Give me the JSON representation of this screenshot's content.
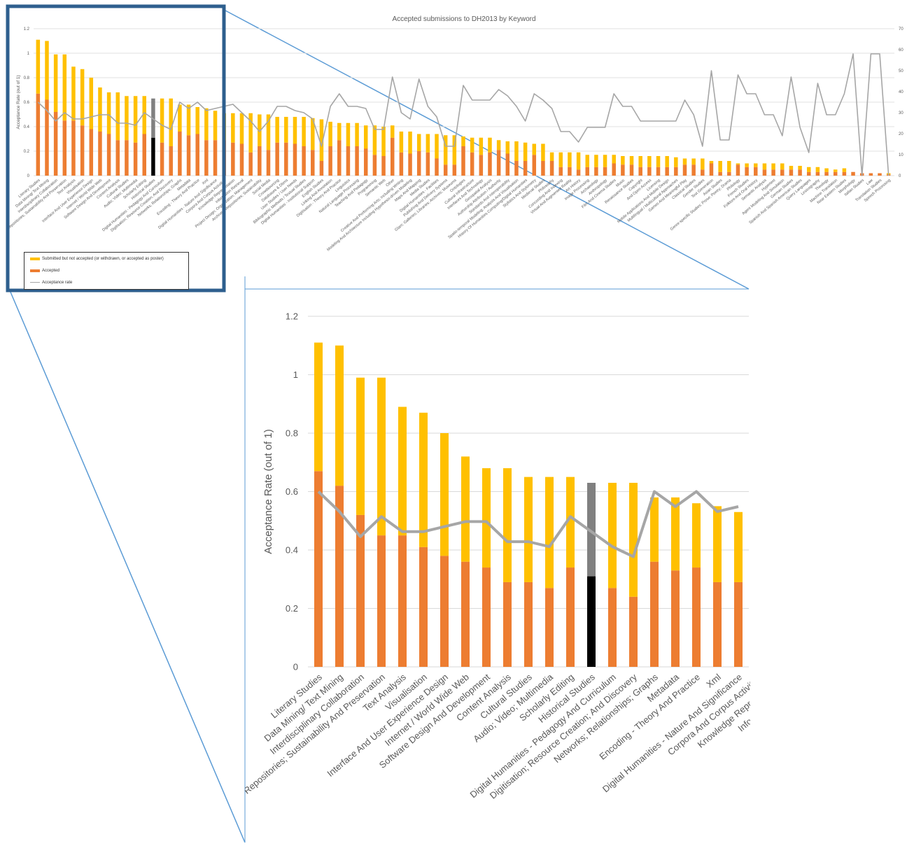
{
  "chart_data": {
    "type": "bar",
    "title": "Accepted submissions to DH2013 by Keyword",
    "ylabel": "Acceptance Rate (out of 1)",
    "ylim": [
      0,
      1.2
    ],
    "y_ticks": [
      "0",
      "0.2",
      "0.4",
      "0.6",
      "0.8",
      "1",
      "1.2"
    ],
    "y2lim": [
      0,
      70
    ],
    "y2_ticks": [
      "0",
      "10",
      "20",
      "30",
      "40",
      "50",
      "60",
      "70"
    ],
    "legend": {
      "placement": "bottom-left",
      "items": [
        {
          "label": "Submitted but not accepted (or withdrawn, or accepted as poster)",
          "color": "#FFC000"
        },
        {
          "label": "Accepted",
          "color": "#ED7D31"
        },
        {
          "label": "Acceptance rate",
          "color": "#A6A6A6"
        }
      ]
    },
    "colors": {
      "submitted": "#FFC000",
      "accepted": "#ED7D31",
      "line": "#A6A6A6",
      "highlight_submitted": "#808080",
      "highlight_accepted": "#000000",
      "callout": "#2E5F8E",
      "zoom_lines": "#5B9BD5"
    },
    "highlight_category": "Historical Studies",
    "categories": [
      "Literary Studies",
      "Data Mining/ Text Mining",
      "Interdisciplinary Collaboration",
      "Repositories; Sustainability And Preservation",
      "Text Analysis",
      "Visualisation",
      "Interface And User Experience Design",
      "Internet / World Wide Web",
      "Software Design And Development",
      "Content Analysis",
      "Cultural Studies",
      "Audio; Video; Multimedia",
      "Scholarly Editing",
      "Historical Studies",
      "Digital Humanities - Pedagogy And Curriculum",
      "Digitisation; Resource Creation; And Discovery",
      "Networks; Relationships; Graphs",
      "Metadata",
      "Encoding - Theory And Practice",
      "Xml",
      "Digital Humanities - Nature And Significance",
      "Corpora And Corpus Activities",
      "Knowledge Representation",
      "Information Retrieval",
      "Project Design; Organization; Management",
      "Archives; Repositories; Sustainability",
      "Social Media",
      "Crowdsourcing",
      "Databases & Dbms",
      "User Studies / User Needs",
      "Bibliographic Methods / Textual Studies",
      "Digital Humanities - Institutional Support",
      "English Studies",
      "Linking And Annotation",
      "Digitisation - Theory And Practice",
      "Linguistics",
      "Natural Language Processing",
      "Teaching And Pedagogy",
      "Programming",
      "Semantic Web",
      "Other",
      "Creative And Performing Arts; Including Writing",
      "Modeling And Architecture Including Hypothesis-driven Modeling",
      "Maps And Mapping",
      "Media Studies",
      "Digital Humanities - Facilities",
      "Publishing And Delivery Systems",
      "Glam: Galleries; Libraries; Archives; Museums",
      "Ontologies",
      "Cultural Infrastructure",
      "Interfaces And Technology",
      "Geospatial Analysis",
      "Authorship Attribution / Authority",
      "Standards And Interoperability",
      "Spatio-temporal Modeling; Analysis And Visualisation",
      "History Of Humanities Computing/Digital Humanities",
      "Stylistics And Stylometry",
      "Medieval Studies",
      "Philosophy",
      "Concording And Indexing",
      "Virtual And Augmented Reality",
      "Art History",
      "Image Processing",
      "Archaeology",
      "Anthropology",
      "Film And Cinema Studies",
      "Music",
      "Renaissance Studies",
      "Copyright",
      "And Open Access",
      "Licensing",
      "Mobile Applications And Mobile Design",
      "Multilingual / Multicultural Approaches",
      "Games And Meaningful Play",
      "Classical Studies",
      "Gender Studies",
      "Text Generation",
      "Asian Studies",
      "Genre-specific Studies: Prose; Poetry; Drama",
      "Philology",
      "French Studies",
      "Folklore And Oral History",
      "Semantic Analysis",
      "Hypertext",
      "Agent Modeling And Simulation",
      "German Studies",
      "Spanish And Spanish American Studies",
      "Query Languages",
      "Lexicography",
      "Theology",
      "Machine Translation",
      "Near Eastern Studies",
      "Morphology",
      "Italian Studies",
      "Law",
      "Translation Studies",
      "Speech Processing"
    ],
    "series": [
      {
        "name": "Accepted",
        "values": [
          0.67,
          0.62,
          0.52,
          0.45,
          0.45,
          0.41,
          0.38,
          0.36,
          0.34,
          0.29,
          0.29,
          0.27,
          0.34,
          0.31,
          0.27,
          0.24,
          0.36,
          0.33,
          0.34,
          0.29,
          0.29,
          0.29,
          0.27,
          0.26,
          0.19,
          0.24,
          0.21,
          0.27,
          0.27,
          0.26,
          0.24,
          0.21,
          0.12,
          0.24,
          0.29,
          0.24,
          0.24,
          0.22,
          0.17,
          0.16,
          0.31,
          0.19,
          0.18,
          0.2,
          0.19,
          0.14,
          0.09,
          0.09,
          0.24,
          0.19,
          0.17,
          0.19,
          0.21,
          0.18,
          0.12,
          0.12,
          0.17,
          0.12,
          0.12,
          0.07,
          0.07,
          0.05,
          0.07,
          0.07,
          0.07,
          0.1,
          0.09,
          0.09,
          0.07,
          0.07,
          0.07,
          0.07,
          0.07,
          0.09,
          0.09,
          0.05,
          0.1,
          0.03,
          0.03,
          0.09,
          0.07,
          0.07,
          0.05,
          0.05,
          0.05,
          0.05,
          0.05,
          0.03,
          0.03,
          0.03,
          0.03,
          0.03,
          0.03,
          0.02,
          0.02,
          0.02,
          0.01
        ]
      },
      {
        "name": "Submitted but not accepted (or withdrawn, or accepted as poster)",
        "values": [
          0.44,
          0.48,
          0.47,
          0.54,
          0.44,
          0.46,
          0.42,
          0.36,
          0.34,
          0.39,
          0.36,
          0.38,
          0.31,
          0.32,
          0.36,
          0.39,
          0.22,
          0.25,
          0.22,
          0.26,
          0.24,
          0.22,
          0.24,
          0.25,
          0.32,
          0.26,
          0.29,
          0.21,
          0.21,
          0.22,
          0.24,
          0.26,
          0.34,
          0.2,
          0.14,
          0.19,
          0.19,
          0.19,
          0.24,
          0.24,
          0.1,
          0.17,
          0.18,
          0.14,
          0.15,
          0.2,
          0.24,
          0.24,
          0.08,
          0.12,
          0.14,
          0.12,
          0.08,
          0.1,
          0.16,
          0.15,
          0.09,
          0.14,
          0.07,
          0.12,
          0.12,
          0.14,
          0.1,
          0.1,
          0.1,
          0.07,
          0.07,
          0.07,
          0.09,
          0.09,
          0.09,
          0.09,
          0.08,
          0.05,
          0.05,
          0.09,
          0.02,
          0.09,
          0.09,
          0.01,
          0.03,
          0.03,
          0.05,
          0.05,
          0.05,
          0.03,
          0.03,
          0.04,
          0.04,
          0.03,
          0.02,
          0.03,
          0.0,
          0.0,
          0.0,
          0.0,
          0.01
        ]
      },
      {
        "name": "Acceptance rate",
        "axis": "secondary",
        "values": [
          35,
          31,
          26,
          30,
          27,
          27,
          28,
          29,
          29,
          25,
          25,
          24,
          30,
          27,
          24,
          22,
          35,
          32,
          35,
          31,
          32,
          33,
          34,
          30,
          26,
          21,
          26,
          33,
          33,
          31,
          30,
          27,
          14,
          33,
          39,
          33,
          33,
          32,
          22,
          22,
          47,
          30,
          27,
          46,
          33,
          28,
          14,
          14,
          43,
          36,
          36,
          36,
          41,
          38,
          33,
          26,
          39,
          36,
          32,
          21,
          21,
          16,
          23,
          23,
          23,
          39,
          33,
          33,
          26,
          26,
          26,
          26,
          26,
          36,
          29,
          14,
          50,
          17,
          17,
          48,
          39,
          39,
          29,
          29,
          19,
          47,
          23,
          11,
          44,
          29,
          29,
          39,
          58,
          0,
          58,
          58,
          0
        ]
      }
    ]
  }
}
